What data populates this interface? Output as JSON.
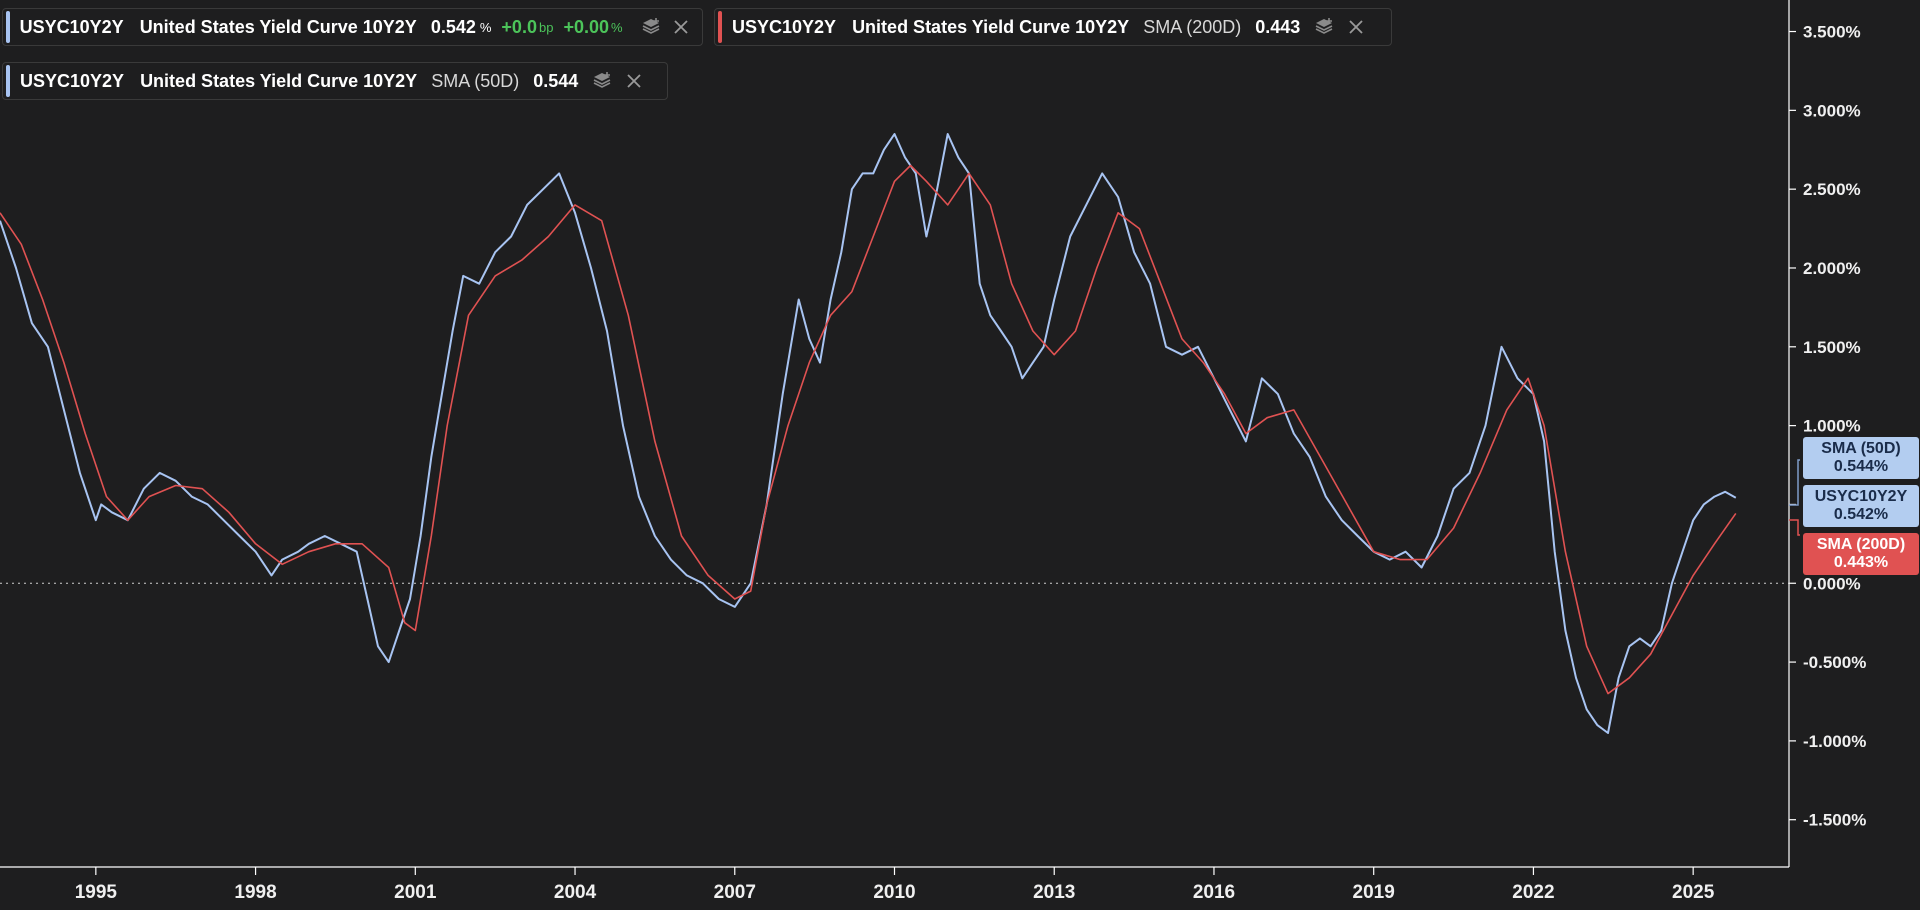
{
  "legend": [
    {
      "ticker": "USYC10Y2Y",
      "name": "United States Yield Curve 10Y2Y",
      "study": "",
      "value": "0.542",
      "unit": "%",
      "change": "+0.0",
      "change_unit": "bp",
      "change_pct": "+0.00",
      "change_pct_unit": "%",
      "accent": "#a8c4f2"
    },
    {
      "ticker": "USYC10Y2Y",
      "name": "United States Yield Curve 10Y2Y",
      "study": "SMA (200D)",
      "value": "0.443",
      "accent": "#e05252"
    },
    {
      "ticker": "USYC10Y2Y",
      "name": "United States Yield Curve 10Y2Y",
      "study": "SMA (50D)",
      "value": "0.544",
      "accent": "#a8c4f2"
    }
  ],
  "tags": [
    {
      "label": "SMA (50D)",
      "value": "0.544%"
    },
    {
      "label": "USYC10Y2Y",
      "value": "0.542%"
    },
    {
      "label": "SMA (200D)",
      "value": "0.443%"
    }
  ],
  "colors": {
    "background": "#1e1e1f",
    "series_main": "#a8c4f2",
    "series_sma200": "#e05252",
    "axis": "#ffffff",
    "tag_blue": "#b3cdf0",
    "tag_red": "#e05252"
  },
  "icons": {
    "layers": "layers-add-icon",
    "close": "close-icon"
  },
  "chart_data": {
    "type": "line",
    "title": "",
    "xlabel": "",
    "ylabel": "",
    "grid": false,
    "zero_line": "dotted",
    "xlim": [
      1993.2,
      2026.8
    ],
    "ylim": [
      -1.8,
      3.7
    ],
    "x_ticks": [
      1995,
      1998,
      2001,
      2004,
      2007,
      2010,
      2013,
      2016,
      2019,
      2022,
      2025
    ],
    "x_tick_labels": [
      "1995",
      "1998",
      "2001",
      "2004",
      "2007",
      "2010",
      "2013",
      "2016",
      "2019",
      "2022",
      "2025"
    ],
    "y_ticks": [
      3.5,
      3.0,
      2.5,
      2.0,
      1.5,
      1.0,
      0.5,
      0.0,
      -0.5,
      -1.0,
      -1.5
    ],
    "y_tick_labels": [
      "3.500%",
      "3.000%",
      "2.500%",
      "2.000%",
      "1.500%",
      "1.000%",
      "0.500%",
      "0.000%",
      "-0.500%",
      "-1.000%",
      "-1.500%"
    ],
    "series": [
      {
        "name": "USYC10Y2Y",
        "color": "#a8c4f2",
        "x": [
          1993.2,
          1993.5,
          1993.8,
          1994.1,
          1994.4,
          1994.7,
          1995.0,
          1995.1,
          1995.3,
          1995.6,
          1995.9,
          1996.2,
          1996.5,
          1996.8,
          1997.1,
          1997.4,
          1997.7,
          1998.0,
          1998.3,
          1998.5,
          1998.8,
          1999.0,
          1999.3,
          1999.6,
          1999.9,
          2000.1,
          2000.3,
          2000.5,
          2000.7,
          2000.9,
          2001.1,
          2001.3,
          2001.5,
          2001.7,
          2001.9,
          2002.2,
          2002.5,
          2002.8,
          2003.1,
          2003.4,
          2003.7,
          2004.0,
          2004.3,
          2004.6,
          2004.9,
          2005.2,
          2005.5,
          2005.8,
          2006.1,
          2006.4,
          2006.7,
          2007.0,
          2007.3,
          2007.6,
          2007.9,
          2008.2,
          2008.4,
          2008.6,
          2008.8,
          2009.0,
          2009.2,
          2009.4,
          2009.6,
          2009.8,
          2010.0,
          2010.2,
          2010.4,
          2010.6,
          2010.8,
          2011.0,
          2011.2,
          2011.4,
          2011.6,
          2011.8,
          2012.0,
          2012.2,
          2012.4,
          2012.6,
          2012.8,
          2013.0,
          2013.3,
          2013.6,
          2013.9,
          2014.2,
          2014.5,
          2014.8,
          2015.1,
          2015.4,
          2015.7,
          2016.0,
          2016.3,
          2016.6,
          2016.9,
          2017.2,
          2017.5,
          2017.8,
          2018.1,
          2018.4,
          2018.7,
          2019.0,
          2019.3,
          2019.6,
          2019.9,
          2020.2,
          2020.5,
          2020.8,
          2021.1,
          2021.4,
          2021.7,
          2022.0,
          2022.2,
          2022.4,
          2022.6,
          2022.8,
          2023.0,
          2023.2,
          2023.4,
          2023.6,
          2023.8,
          2024.0,
          2024.2,
          2024.4,
          2024.6,
          2024.8,
          2025.0,
          2025.2,
          2025.4,
          2025.6,
          2025.8
        ],
        "values": [
          2.3,
          2.0,
          1.65,
          1.5,
          1.1,
          0.7,
          0.4,
          0.5,
          0.45,
          0.4,
          0.6,
          0.7,
          0.65,
          0.55,
          0.5,
          0.4,
          0.3,
          0.2,
          0.05,
          0.15,
          0.2,
          0.25,
          0.3,
          0.25,
          0.2,
          -0.1,
          -0.4,
          -0.5,
          -0.3,
          -0.1,
          0.3,
          0.8,
          1.2,
          1.6,
          1.95,
          1.9,
          2.1,
          2.2,
          2.4,
          2.5,
          2.6,
          2.35,
          2.0,
          1.6,
          1.0,
          0.55,
          0.3,
          0.15,
          0.05,
          0.0,
          -0.1,
          -0.15,
          0.0,
          0.5,
          1.2,
          1.8,
          1.55,
          1.4,
          1.8,
          2.1,
          2.5,
          2.6,
          2.6,
          2.75,
          2.85,
          2.7,
          2.6,
          2.2,
          2.5,
          2.85,
          2.7,
          2.6,
          1.9,
          1.7,
          1.6,
          1.5,
          1.3,
          1.4,
          1.5,
          1.8,
          2.2,
          2.4,
          2.6,
          2.45,
          2.1,
          1.9,
          1.5,
          1.45,
          1.5,
          1.3,
          1.1,
          0.9,
          1.3,
          1.2,
          0.95,
          0.8,
          0.55,
          0.4,
          0.3,
          0.2,
          0.15,
          0.2,
          0.1,
          0.3,
          0.6,
          0.7,
          1.0,
          1.5,
          1.3,
          1.2,
          0.9,
          0.2,
          -0.3,
          -0.6,
          -0.8,
          -0.9,
          -0.95,
          -0.6,
          -0.4,
          -0.35,
          -0.4,
          -0.3,
          0.0,
          0.2,
          0.4,
          0.5,
          0.55,
          0.58,
          0.542
        ]
      },
      {
        "name": "SMA (200D)",
        "color": "#e05252",
        "x": [
          1993.2,
          1993.6,
          1994.0,
          1994.4,
          1994.8,
          1995.2,
          1995.6,
          1996.0,
          1996.5,
          1997.0,
          1997.5,
          1998.0,
          1998.5,
          1999.0,
          1999.5,
          2000.0,
          2000.5,
          2000.8,
          2001.0,
          2001.3,
          2001.6,
          2002.0,
          2002.5,
          2003.0,
          2003.5,
          2004.0,
          2004.5,
          2005.0,
          2005.5,
          2006.0,
          2006.5,
          2007.0,
          2007.3,
          2007.6,
          2008.0,
          2008.4,
          2008.8,
          2009.2,
          2009.6,
          2010.0,
          2010.3,
          2010.6,
          2011.0,
          2011.4,
          2011.8,
          2012.2,
          2012.6,
          2013.0,
          2013.4,
          2013.8,
          2014.2,
          2014.6,
          2015.0,
          2015.4,
          2015.8,
          2016.2,
          2016.6,
          2017.0,
          2017.5,
          2018.0,
          2018.5,
          2019.0,
          2019.5,
          2020.0,
          2020.5,
          2021.0,
          2021.5,
          2021.9,
          2022.2,
          2022.6,
          2023.0,
          2023.4,
          2023.8,
          2024.2,
          2024.6,
          2025.0,
          2025.4,
          2025.8
        ],
        "values": [
          2.35,
          2.15,
          1.8,
          1.4,
          0.95,
          0.55,
          0.4,
          0.55,
          0.62,
          0.6,
          0.45,
          0.25,
          0.12,
          0.2,
          0.25,
          0.25,
          0.1,
          -0.25,
          -0.3,
          0.3,
          1.0,
          1.7,
          1.95,
          2.05,
          2.2,
          2.4,
          2.3,
          1.7,
          0.9,
          0.3,
          0.05,
          -0.1,
          -0.05,
          0.5,
          1.0,
          1.4,
          1.7,
          1.85,
          2.2,
          2.55,
          2.65,
          2.55,
          2.4,
          2.6,
          2.4,
          1.9,
          1.6,
          1.45,
          1.6,
          2.0,
          2.35,
          2.25,
          1.9,
          1.55,
          1.4,
          1.2,
          0.95,
          1.05,
          1.1,
          0.8,
          0.5,
          0.2,
          0.15,
          0.15,
          0.35,
          0.7,
          1.1,
          1.3,
          1.0,
          0.2,
          -0.4,
          -0.7,
          -0.6,
          -0.45,
          -0.2,
          0.05,
          0.25,
          0.443
        ]
      }
    ]
  }
}
